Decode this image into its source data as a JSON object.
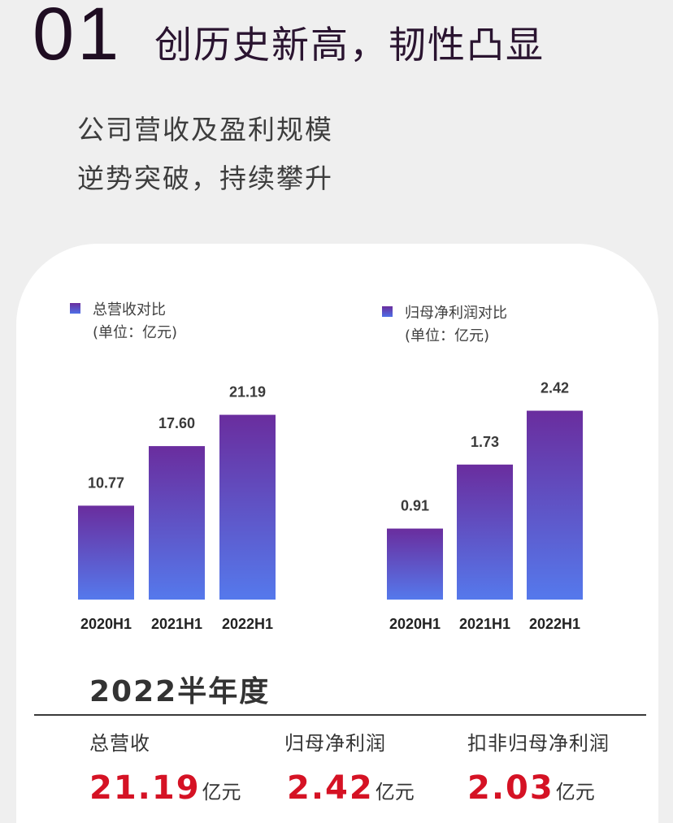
{
  "header": {
    "section_number": "01",
    "title": "创历史新高，韧性凸显"
  },
  "subtitle": {
    "line1": "公司营收及盈利规模",
    "line2": "逆势突破，持续攀升"
  },
  "chart_data": [
    {
      "type": "bar",
      "title": "总营收对比",
      "unit": "(单位：亿元)",
      "categories": [
        "2020H1",
        "2021H1",
        "2022H1"
      ],
      "values": [
        10.77,
        17.6,
        21.19
      ],
      "value_labels": [
        "10.77",
        "17.60",
        "21.19"
      ],
      "ylim": [
        0,
        30
      ],
      "colors": {
        "top": "#6a2d9e",
        "bottom": "#5579ec"
      }
    },
    {
      "type": "bar",
      "title": "归母净利润对比",
      "unit": "(单位：亿元)",
      "categories": [
        "2020H1",
        "2021H1",
        "2022H1"
      ],
      "values": [
        0.91,
        1.73,
        2.42
      ],
      "value_labels": [
        "0.91",
        "1.73",
        "2.42"
      ],
      "ylim": [
        0,
        3.3
      ],
      "colors": {
        "top": "#6a2d9e",
        "bottom": "#5579ec"
      }
    }
  ],
  "summary": {
    "title": "2022半年度",
    "items": [
      {
        "label": "总营收",
        "value": "21.19",
        "unit": "亿元"
      },
      {
        "label": "归母净利润",
        "value": "2.42",
        "unit": "亿元"
      },
      {
        "label": "扣非归母净利润",
        "value": "2.03",
        "unit": "亿元"
      }
    ],
    "value_color": "#d51224"
  }
}
